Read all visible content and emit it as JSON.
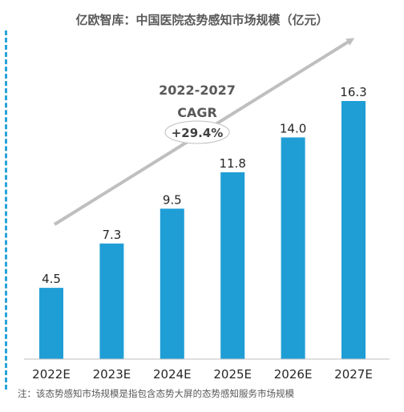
{
  "title": "亿欧智库：中国医院态势感知市场规模（亿元）",
  "footnote": "注：该态势感知市场规模是指包含态势大屏的态势感知服务市场规模",
  "cagr": {
    "period": "2022-2027",
    "label": "CAGR",
    "value": "+29.4%"
  },
  "colors": {
    "bar": "#1f9ed6",
    "text": "#595959",
    "arrow": "#bfbfbf",
    "side_line": "#29a3d9"
  },
  "chart_data": {
    "type": "bar",
    "categories": [
      "2022E",
      "2023E",
      "2024E",
      "2025E",
      "2026E",
      "2027E"
    ],
    "values": [
      4.5,
      7.3,
      9.5,
      11.8,
      14.0,
      16.3
    ],
    "value_labels": [
      "4.5",
      "7.3",
      "9.5",
      "11.8",
      "14.0",
      "16.3"
    ],
    "title": "亿欧智库：中国医院态势感知市场规模（亿元）",
    "ylim": [
      0,
      16.3
    ],
    "grid": false,
    "legend": "none"
  }
}
